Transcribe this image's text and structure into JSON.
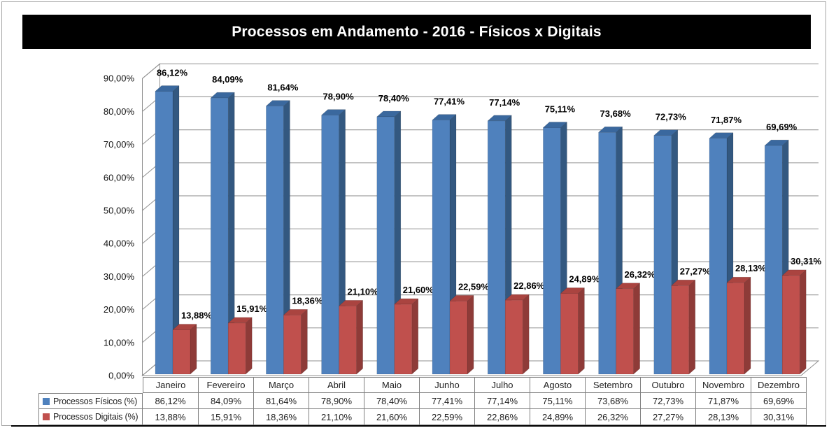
{
  "title": "Processos em Andamento - 2016 - Físicos x Digitais",
  "colors": {
    "title_bg": "#000000",
    "title_text": "#FFFFFF",
    "gridline": "#A0A0A0",
    "wall_stroke": "#8F8F8F",
    "table_border": "#7F7F7F",
    "label_text": "#000000",
    "series": [
      {
        "front": "#4F81BD",
        "side": "#335880",
        "top": "#3A689E"
      },
      {
        "front": "#C0504D",
        "side": "#8E3B38",
        "top": "#AA4440"
      }
    ]
  },
  "chart_data": {
    "type": "bar",
    "style": "3d-clustered-column",
    "title": "Processos em Andamento - 2016 - Físicos x Digitais",
    "xlabel": "",
    "ylabel": "",
    "ylim": [
      0,
      90
    ],
    "ytick_step": 10,
    "ytick_labels": [
      "0,00%",
      "10,00%",
      "20,00%",
      "30,00%",
      "40,00%",
      "50,00%",
      "60,00%",
      "70,00%",
      "80,00%",
      "90,00%"
    ],
    "grid": true,
    "legend_position": "table-left",
    "categories": [
      "Janeiro",
      "Fevereiro",
      "Março",
      "Abril",
      "Maio",
      "Junho",
      "Julho",
      "Agosto",
      "Setembro",
      "Outubro",
      "Novembro",
      "Dezembro"
    ],
    "series": [
      {
        "name": "Processos Físicos (%)",
        "values": [
          86.12,
          84.09,
          81.64,
          78.9,
          78.4,
          77.41,
          77.14,
          75.11,
          73.68,
          72.73,
          71.87,
          69.69
        ]
      },
      {
        "name": "Processos Digitais (%)",
        "values": [
          13.88,
          15.91,
          18.36,
          21.1,
          21.6,
          22.59,
          22.86,
          24.89,
          26.32,
          27.27,
          28.13,
          30.31
        ]
      }
    ]
  },
  "table": {
    "columns": [
      "Janeiro",
      "Fevereiro",
      "Março",
      "Abril",
      "Maio",
      "Junho",
      "Julho",
      "Agosto",
      "Setembro",
      "Outubro",
      "Novembro",
      "Dezembro"
    ],
    "row_headers": [
      "Processos Físicos (%)",
      "Processos Digitais (%)"
    ],
    "rows": [
      [
        "86,12%",
        "84,09%",
        "81,64%",
        "78,90%",
        "78,40%",
        "77,41%",
        "77,14%",
        "75,11%",
        "73,68%",
        "72,73%",
        "71,87%",
        "69,69%"
      ],
      [
        "13,88%",
        "15,91%",
        "18,36%",
        "21,10%",
        "21,60%",
        "22,59%",
        "22,86%",
        "24,89%",
        "26,32%",
        "27,27%",
        "28,13%",
        "30,31%"
      ]
    ]
  }
}
